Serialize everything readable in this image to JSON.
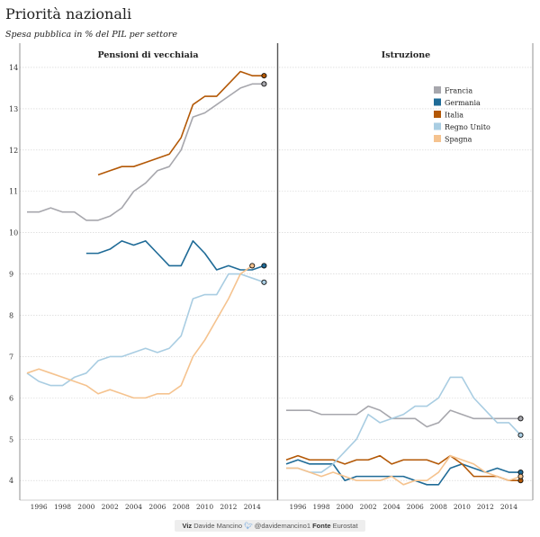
{
  "title": "Priorità nazionali",
  "subtitle": "Spesa pubblica in % del PIL per settore",
  "footer": {
    "viz_label": "Viz",
    "viz_name": "Davide Mancino",
    "twitter_icon": "twitter-bird-icon",
    "twitter_handle": "@davidemancino1",
    "source_label": "Fonte",
    "source_name": "Eurostat"
  },
  "chart_data": {
    "type": "line",
    "x_ticks": [
      1996,
      1998,
      2000,
      2002,
      2004,
      2006,
      2008,
      2010,
      2012,
      2014
    ],
    "xlim": [
      1995,
      2015.5
    ],
    "ylim": [
      3.7,
      14.5
    ],
    "y_ticks": [
      4,
      5,
      6,
      7,
      8,
      9,
      10,
      11,
      12,
      13,
      14
    ],
    "grid": true,
    "legend_position": "top-right of second panel",
    "colors": {
      "Francia": "#a7a7ad",
      "Germania": "#1f6b97",
      "Italia": "#b35806",
      "Regno Unito": "#a9cde2",
      "Spagna": "#f5c38f"
    },
    "legend": [
      "Francia",
      "Germania",
      "Italia",
      "Regno Unito",
      "Spagna"
    ],
    "panels": [
      {
        "title": "Pensioni di vecchiaia",
        "series": [
          {
            "name": "Francia",
            "x": [
              1995,
              1996,
              1997,
              1998,
              1999,
              2000,
              2001,
              2002,
              2003,
              2004,
              2005,
              2006,
              2007,
              2008,
              2009,
              2010,
              2011,
              2012,
              2013,
              2014,
              2015
            ],
            "y": [
              10.5,
              10.5,
              10.6,
              10.5,
              10.5,
              10.3,
              10.3,
              10.4,
              10.6,
              11.0,
              11.2,
              11.5,
              11.6,
              12.0,
              12.8,
              12.9,
              13.1,
              13.3,
              13.5,
              13.6,
              13.6
            ]
          },
          {
            "name": "Germania",
            "x": [
              2000,
              2001,
              2002,
              2003,
              2004,
              2005,
              2006,
              2007,
              2008,
              2009,
              2010,
              2011,
              2012,
              2013,
              2014,
              2015
            ],
            "y": [
              9.5,
              9.5,
              9.6,
              9.8,
              9.7,
              9.8,
              9.5,
              9.2,
              9.2,
              9.8,
              9.5,
              9.1,
              9.2,
              9.1,
              9.1,
              9.2
            ]
          },
          {
            "name": "Italia",
            "x": [
              2001,
              2002,
              2003,
              2004,
              2005,
              2006,
              2007,
              2008,
              2009,
              2010,
              2011,
              2012,
              2013,
              2014,
              2015
            ],
            "y": [
              11.4,
              11.5,
              11.6,
              11.6,
              11.7,
              11.8,
              11.9,
              12.3,
              13.1,
              13.3,
              13.3,
              13.6,
              13.9,
              13.8,
              13.8
            ]
          },
          {
            "name": "Regno Unito",
            "x": [
              1995,
              1996,
              1997,
              1998,
              1999,
              2000,
              2001,
              2002,
              2003,
              2004,
              2005,
              2006,
              2007,
              2008,
              2009,
              2010,
              2011,
              2012,
              2013,
              2014,
              2015
            ],
            "y": [
              6.6,
              6.4,
              6.3,
              6.3,
              6.5,
              6.6,
              6.9,
              7.0,
              7.0,
              7.1,
              7.2,
              7.1,
              7.2,
              7.5,
              8.4,
              8.5,
              8.5,
              9.0,
              9.0,
              8.9,
              8.8
            ]
          },
          {
            "name": "Spagna",
            "x": [
              1995,
              1996,
              1997,
              1998,
              1999,
              2000,
              2001,
              2002,
              2003,
              2004,
              2005,
              2006,
              2007,
              2008,
              2009,
              2010,
              2011,
              2012,
              2013,
              2014
            ],
            "y": [
              6.6,
              6.7,
              6.6,
              6.5,
              6.4,
              6.3,
              6.1,
              6.2,
              6.1,
              6.0,
              6.0,
              6.1,
              6.1,
              6.3,
              7.0,
              7.4,
              7.9,
              8.4,
              9.0,
              9.2
            ]
          }
        ]
      },
      {
        "title": "Istruzione",
        "series": [
          {
            "name": "Francia",
            "x": [
              1995,
              1996,
              1997,
              1998,
              1999,
              2000,
              2001,
              2002,
              2003,
              2004,
              2005,
              2006,
              2007,
              2008,
              2009,
              2010,
              2011,
              2012,
              2013,
              2014,
              2015
            ],
            "y": [
              5.7,
              5.7,
              5.7,
              5.6,
              5.6,
              5.6,
              5.6,
              5.8,
              5.7,
              5.5,
              5.5,
              5.5,
              5.3,
              5.4,
              5.7,
              5.6,
              5.5,
              5.5,
              5.5,
              5.5,
              5.5
            ]
          },
          {
            "name": "Germania",
            "x": [
              1995,
              1996,
              1997,
              1998,
              1999,
              2000,
              2001,
              2002,
              2003,
              2004,
              2005,
              2006,
              2007,
              2008,
              2009,
              2010,
              2011,
              2012,
              2013,
              2014,
              2015
            ],
            "y": [
              4.4,
              4.5,
              4.4,
              4.4,
              4.4,
              4.0,
              4.1,
              4.1,
              4.1,
              4.1,
              4.1,
              4.0,
              3.9,
              3.9,
              4.3,
              4.4,
              4.3,
              4.2,
              4.3,
              4.2,
              4.2
            ]
          },
          {
            "name": "Italia",
            "x": [
              1995,
              1996,
              1997,
              1998,
              1999,
              2000,
              2001,
              2002,
              2003,
              2004,
              2005,
              2006,
              2007,
              2008,
              2009,
              2010,
              2011,
              2012,
              2013,
              2014,
              2015
            ],
            "y": [
              4.5,
              4.6,
              4.5,
              4.5,
              4.5,
              4.4,
              4.5,
              4.5,
              4.6,
              4.4,
              4.5,
              4.5,
              4.5,
              4.4,
              4.6,
              4.4,
              4.1,
              4.1,
              4.1,
              4.0,
              4.0
            ]
          },
          {
            "name": "Regno Unito",
            "x": [
              1995,
              1996,
              1997,
              1998,
              1999,
              2000,
              2001,
              2002,
              2003,
              2004,
              2005,
              2006,
              2007,
              2008,
              2009,
              2010,
              2011,
              2012,
              2013,
              2014,
              2015
            ],
            "y": [
              4.3,
              4.3,
              4.2,
              4.2,
              4.4,
              4.7,
              5.0,
              5.6,
              5.4,
              5.5,
              5.6,
              5.8,
              5.8,
              6.0,
              6.5,
              6.5,
              6.0,
              5.7,
              5.4,
              5.4,
              5.1
            ]
          },
          {
            "name": "Spagna",
            "x": [
              1995,
              1996,
              1997,
              1998,
              1999,
              2000,
              2001,
              2002,
              2003,
              2004,
              2005,
              2006,
              2007,
              2008,
              2009,
              2010,
              2011,
              2012,
              2013,
              2014,
              2015
            ],
            "y": [
              4.3,
              4.3,
              4.2,
              4.1,
              4.2,
              4.1,
              4.0,
              4.0,
              4.0,
              4.1,
              3.9,
              4.0,
              4.0,
              4.2,
              4.6,
              4.5,
              4.4,
              4.2,
              4.1,
              4.0,
              4.1
            ]
          }
        ]
      }
    ]
  }
}
